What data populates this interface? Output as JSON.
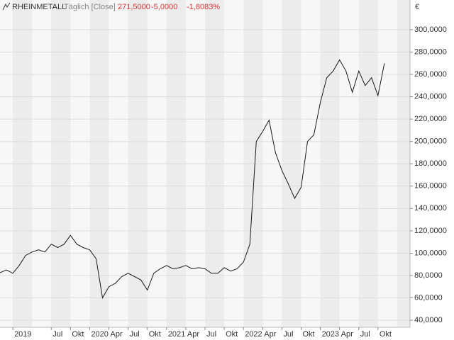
{
  "chart_data": {
    "type": "line",
    "title": "RHEINMETALL",
    "subtitle": "Täglich [Close]",
    "annotations": [
      "271,5000",
      "-5,0000",
      "-1,8083%"
    ],
    "y_unit": "€",
    "x": [
      "2018-11",
      "2018-12",
      "2019-01",
      "2019-02",
      "2019-03",
      "2019-04",
      "2019-05",
      "2019-06",
      "2019-07",
      "2019-08",
      "2019-09",
      "2019-10",
      "2019-11",
      "2019-12",
      "2020-01",
      "2020-02",
      "2020-03",
      "2020-04",
      "2020-05",
      "2020-06",
      "2020-07",
      "2020-08",
      "2020-09",
      "2020-10",
      "2020-11",
      "2020-12",
      "2021-01",
      "2021-02",
      "2021-03",
      "2021-04",
      "2021-05",
      "2021-06",
      "2021-07",
      "2021-08",
      "2021-09",
      "2021-10",
      "2021-11",
      "2021-12",
      "2022-01",
      "2022-02",
      "2022-03",
      "2022-04",
      "2022-05",
      "2022-06",
      "2022-07",
      "2022-08",
      "2022-09",
      "2022-10",
      "2022-11",
      "2022-12",
      "2023-01",
      "2023-02",
      "2023-03",
      "2023-04",
      "2023-05",
      "2023-06",
      "2023-07",
      "2023-08",
      "2023-09",
      "2023-10",
      "2023-11"
    ],
    "series": [
      {
        "name": "RHEINMETALL",
        "color": "#1a1a1a",
        "values": [
          82.5,
          85,
          82,
          89,
          98,
          101,
          103,
          101,
          108,
          105,
          108,
          116,
          108,
          105,
          103,
          95,
          60,
          70,
          73,
          79,
          82,
          79,
          76,
          67,
          82,
          86,
          89,
          86,
          87,
          89,
          86,
          87,
          86,
          82,
          82,
          87,
          84,
          86,
          92,
          108,
          200,
          209,
          219,
          190,
          174,
          162,
          149,
          159,
          200,
          206,
          235,
          257,
          263,
          273,
          263,
          244,
          263,
          250,
          257,
          241,
          270
        ]
      }
    ],
    "xlim": [
      "2018-11",
      "2024-03"
    ],
    "xticks": [
      {
        "value": "2019-01",
        "label": "2019"
      },
      {
        "value": "2019-07",
        "label": "Jul"
      },
      {
        "value": "2019-10",
        "label": "Okt"
      },
      {
        "value": "2020-01",
        "label": "2020"
      },
      {
        "value": "2020-04",
        "label": "Apr"
      },
      {
        "value": "2020-07",
        "label": "Jul"
      },
      {
        "value": "2020-10",
        "label": "Okt"
      },
      {
        "value": "2021-01",
        "label": "2021"
      },
      {
        "value": "2021-04",
        "label": "Apr"
      },
      {
        "value": "2021-07",
        "label": "Jul"
      },
      {
        "value": "2021-10",
        "label": "Okt"
      },
      {
        "value": "2022-01",
        "label": "2022"
      },
      {
        "value": "2022-04",
        "label": "Apr"
      },
      {
        "value": "2022-07",
        "label": "Jul"
      },
      {
        "value": "2022-10",
        "label": "Okt"
      },
      {
        "value": "2023-01",
        "label": "2023"
      },
      {
        "value": "2023-04",
        "label": "Apr"
      },
      {
        "value": "2023-07",
        "label": "Jul"
      },
      {
        "value": "2023-10",
        "label": "Okt"
      }
    ],
    "ylim": [
      33.7,
      326.6
    ],
    "yticks": [
      {
        "value": 40,
        "label": "40,0000"
      },
      {
        "value": 60,
        "label": "60,0000"
      },
      {
        "value": 80,
        "label": "80,0000"
      },
      {
        "value": 100,
        "label": "100,0000"
      },
      {
        "value": 120,
        "label": "120,0000"
      },
      {
        "value": 140,
        "label": "140,0000"
      },
      {
        "value": 160,
        "label": "160,0000"
      },
      {
        "value": 180,
        "label": "180,0000"
      },
      {
        "value": 200,
        "label": "200,0000"
      },
      {
        "value": 220,
        "label": "220,0000"
      },
      {
        "value": 240,
        "label": "240,0000"
      },
      {
        "value": 260,
        "label": "260,0000"
      },
      {
        "value": 280,
        "label": "280,0000"
      },
      {
        "value": 300,
        "label": "300,0000"
      }
    ],
    "grid": true
  }
}
